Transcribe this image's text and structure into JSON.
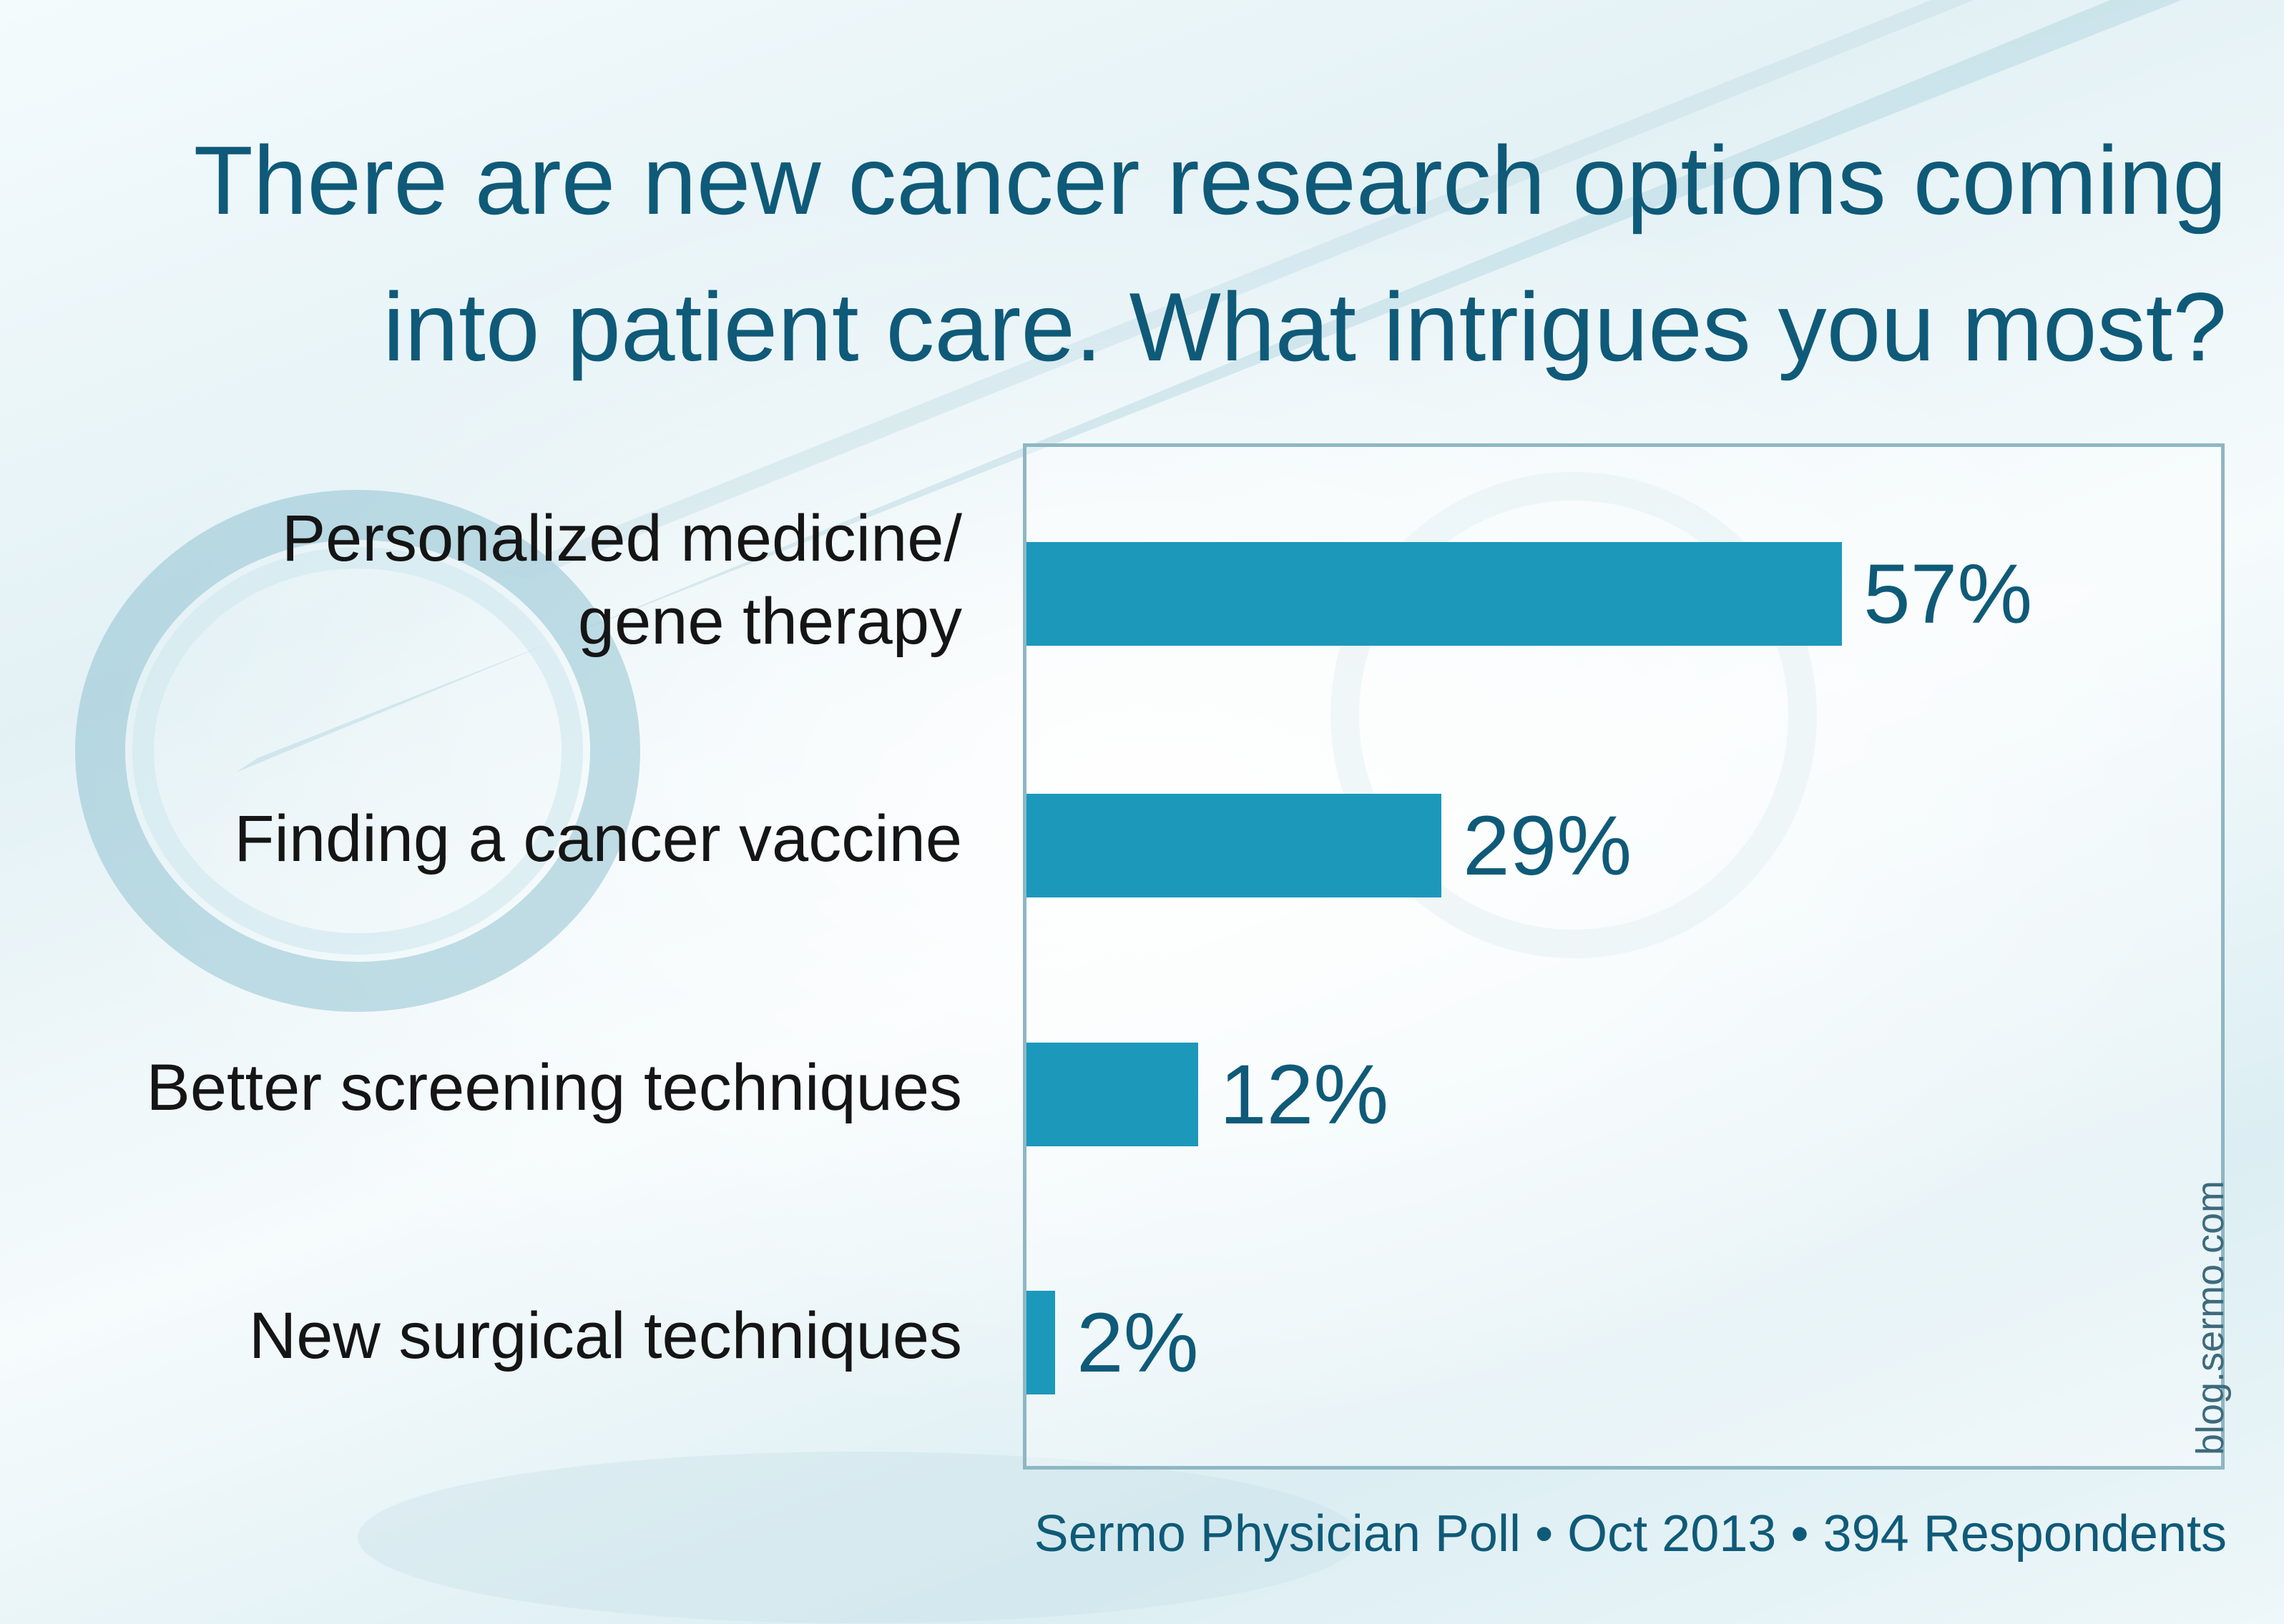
{
  "chart_data": {
    "type": "bar",
    "orientation": "horizontal",
    "title": [
      "There are new cancer research options coming",
      "into patient care.  What intrigues you most?"
    ],
    "categories": [
      [
        "Personalized medicine/",
        "gene therapy"
      ],
      [
        "Finding a cancer vaccine"
      ],
      [
        "Better screening techniques"
      ],
      [
        "New surgical techniques"
      ]
    ],
    "values": [
      57,
      29,
      12,
      2
    ],
    "value_labels": [
      "57%",
      "29%",
      "12%",
      "2%"
    ],
    "unit": "%",
    "xlim": [
      0,
      100
    ],
    "grid": false,
    "bar_color": "#1c98bb"
  },
  "footer": "Sermo Physician Poll • Oct 2013 • 394 Respondents",
  "watermark": "blog.sermo.com",
  "colors": {
    "title": "#0f5a78",
    "bar": "#1c98bb",
    "frame": "#8fb6c3"
  }
}
